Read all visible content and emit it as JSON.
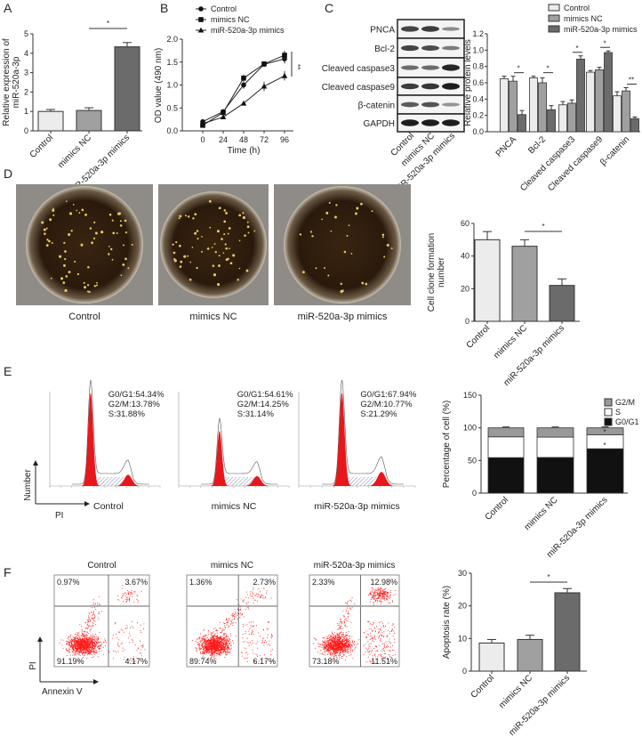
{
  "panel_labels": [
    "A",
    "B",
    "C",
    "D",
    "E",
    "F"
  ],
  "colors": {
    "control": "#ececec",
    "nc": "#a0a0a0",
    "mimics": "#6b6b6b",
    "flow": "#ff1a1a",
    "hist": "#e8171b"
  },
  "groups": [
    "Control",
    "mimics NC",
    "miR-520a-3p mimics"
  ],
  "blot": {
    "rows": [
      "PNCA",
      "Bcl-2",
      "Cleaved caspase3",
      "Cleaved caspase9",
      "β-catenin",
      "GAPDH"
    ],
    "lanes": [
      "Control",
      "mimics NC",
      "miR-520a-3p mimics"
    ],
    "band_intensity": [
      [
        0.75,
        0.8,
        0.3
      ],
      [
        0.75,
        0.7,
        0.4
      ],
      [
        0.5,
        0.5,
        0.95
      ],
      [
        0.8,
        0.85,
        1.0
      ],
      [
        0.6,
        0.65,
        0.25
      ],
      [
        1.0,
        1.0,
        1.0
      ]
    ]
  },
  "colony": {
    "labels": [
      "Control",
      "mimics NC",
      "miR-520a-3p mimics"
    ]
  },
  "cell_cycle_histograms": [
    {
      "label": "Control",
      "g0g1": "G0/G1:54.34%",
      "g2m": "G2/M:13.78%",
      "s": "S:31.88%"
    },
    {
      "label": "mimics NC",
      "g0g1": "G0/G1:54.61%",
      "g2m": "G2/M:14.25%",
      "s": "S:31.14%"
    },
    {
      "label": "miR-520a-3p mimics",
      "g0g1": "G0/G1:67.94%",
      "g2m": "G2/M:10.77%",
      "s": "S:21.29%"
    }
  ],
  "histogram_axes": {
    "y": "Number",
    "x": "PI"
  },
  "flow": {
    "axes": {
      "y": "PI",
      "x": "Annexin V"
    },
    "panels": [
      {
        "title": "Control",
        "ul": "0.97%",
        "ur": "3.67%",
        "ll": "91.19%",
        "lr": "4.17%"
      },
      {
        "title": "mimics NC",
        "ul": "1.36%",
        "ur": "2.73%",
        "ll": "89.74%",
        "lr": "6.17%"
      },
      {
        "title": "miR-520a-3p mimics",
        "ul": "2.33%",
        "ur": "12.98%",
        "ll": "73.18%",
        "lr": "11.51%"
      }
    ]
  },
  "chart_data": [
    {
      "panel": "A",
      "type": "bar",
      "categories": [
        "Control",
        "mimics NC",
        "miR-520a-3p mimics"
      ],
      "values": [
        1.0,
        1.05,
        4.33
      ],
      "errors": [
        0.1,
        0.14,
        0.22
      ],
      "ylabel": [
        "Relative expression of",
        "miR-520a-3p"
      ],
      "ylim": [
        0,
        5
      ],
      "yticks": [
        0,
        1,
        2,
        3,
        4,
        5
      ],
      "significance": [
        {
          "from": 1,
          "to": 2,
          "label": "*"
        }
      ]
    },
    {
      "panel": "B",
      "type": "line",
      "x": [
        0,
        24,
        48,
        72,
        96
      ],
      "xlabel": "Time (h)",
      "ylabel": "OD value (490 nm)",
      "ylim": [
        0,
        2
      ],
      "yticks": [
        "0.0",
        "0.5",
        "1.0",
        "1.5",
        "2.0"
      ],
      "xticks": [
        0,
        24,
        48,
        72,
        96
      ],
      "series": [
        {
          "name": "Control",
          "marker": "circle",
          "values": [
            0.2,
            0.42,
            1.0,
            1.45,
            1.57
          ],
          "errors": [
            0.04,
            0.04,
            0.08,
            0.03,
            0.1
          ]
        },
        {
          "name": "mimics NC",
          "marker": "square",
          "values": [
            0.12,
            0.4,
            1.15,
            1.46,
            1.65
          ],
          "errors": [
            0.04,
            0.05,
            0.08,
            0.03,
            0.1
          ]
        },
        {
          "name": "miR-520a-3p mimics",
          "marker": "triangle",
          "values": [
            0.16,
            0.3,
            0.6,
            0.97,
            1.2
          ],
          "errors": [
            0.03,
            0.03,
            0.02,
            0.1,
            0.1
          ]
        }
      ],
      "significance": "**"
    },
    {
      "panel": "C",
      "type": "bar",
      "categories": [
        "Control",
        "mimics NC",
        "miR-520a-3p mimics"
      ],
      "values": [
        50,
        46,
        22
      ],
      "errors": [
        5,
        4,
        4
      ],
      "ylabel": [
        "Cell clone formation",
        "number"
      ],
      "ylim": [
        0,
        60
      ],
      "yticks": [
        0,
        20,
        40,
        60
      ],
      "significance": [
        {
          "from": 1,
          "to": 2,
          "label": "*"
        }
      ]
    },
    {
      "panel": "D",
      "type": "bar",
      "stacked": true,
      "categories": [
        "Control",
        "mimics NC",
        "miR-520a-3p mimics"
      ],
      "series": [
        {
          "name": "G0/G1",
          "values": [
            54.34,
            54.61,
            67.94
          ]
        },
        {
          "name": "S",
          "values": [
            31.88,
            31.14,
            21.29
          ]
        },
        {
          "name": "G2/M",
          "values": [
            13.78,
            14.25,
            10.77
          ]
        }
      ],
      "legend": [
        "G2/M",
        "S",
        "G0/G1"
      ],
      "ylabel": [
        "Percentage of cell (%)"
      ],
      "ylim": [
        0,
        150
      ],
      "yticks": [
        0,
        50,
        100,
        150
      ],
      "annotations": [
        "*",
        "*"
      ]
    },
    {
      "panel": "E",
      "type": "bar",
      "categories": [
        "Control",
        "mimics NC",
        "miR-520a-3p mimics"
      ],
      "values": [
        8.6,
        9.7,
        24.0
      ],
      "errors": [
        1.1,
        1.3,
        1.3
      ],
      "ylabel": [
        "Apoptosis rate (%)"
      ],
      "ylim": [
        0,
        30
      ],
      "yticks": [
        0,
        10,
        20,
        30
      ],
      "significance": [
        {
          "from": 1,
          "to": 2,
          "label": "*"
        }
      ]
    },
    {
      "panel": "F",
      "type": "bar",
      "grouped": true,
      "categories": [
        "PNCA",
        "Bcl-2",
        "Cleaved caspase3",
        "Cleaved caspase9",
        "β-catenin"
      ],
      "series": [
        {
          "name": "Control",
          "values": [
            0.65,
            0.66,
            0.33,
            0.73,
            0.44
          ],
          "errors": [
            0.03,
            0.02,
            0.04,
            0.02,
            0.05
          ]
        },
        {
          "name": "mimics NC",
          "values": [
            0.62,
            0.6,
            0.35,
            0.76,
            0.5
          ],
          "errors": [
            0.06,
            0.06,
            0.04,
            0.03,
            0.04
          ]
        },
        {
          "name": "miR-520a-3p mimics",
          "values": [
            0.21,
            0.27,
            0.89,
            0.97,
            0.16
          ],
          "errors": [
            0.05,
            0.05,
            0.04,
            0.02,
            0.02
          ]
        }
      ],
      "ylabel": [
        "Relative protein levels"
      ],
      "ylim": [
        0,
        1.2
      ],
      "yticks": [
        "0.0",
        "0.2",
        "0.4",
        "0.6",
        "0.8",
        "1.0",
        "1.2"
      ],
      "significance": [
        "*",
        "*",
        "*",
        "*",
        "**"
      ]
    }
  ]
}
